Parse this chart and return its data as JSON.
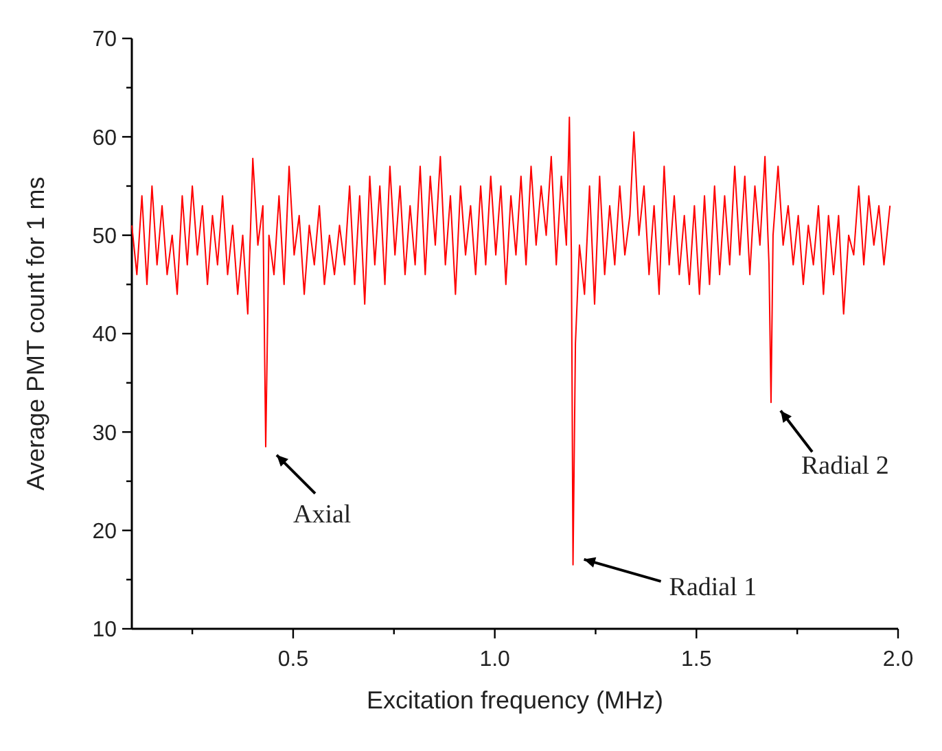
{
  "chart_data": {
    "type": "line",
    "xlabel": "Excitation frequency (MHz)",
    "ylabel": "Average PMT count for 1 ms",
    "xlim": [
      0.1,
      2.0
    ],
    "ylim": [
      10,
      70
    ],
    "xticks": [
      {
        "value": 0.25,
        "label": null
      },
      0.5,
      {
        "value": 0.75,
        "label": null
      },
      {
        "value": 1,
        "label": "1.0"
      },
      {
        "value": 1.25,
        "label": null
      },
      1.5,
      {
        "value": 1.75,
        "label": null
      },
      {
        "value": 2,
        "label": "2.0"
      }
    ],
    "yticks": [
      10,
      {
        "value": 15,
        "label": null
      },
      20,
      {
        "value": 25,
        "label": null
      },
      30,
      {
        "value": 35,
        "label": null
      },
      40,
      {
        "value": 45,
        "label": null
      },
      50,
      {
        "value": 55,
        "label": null
      },
      60,
      {
        "value": 65,
        "label": null
      },
      70
    ],
    "grid": false,
    "marker": "none",
    "line_style": "solid",
    "series": [
      {
        "color": "#ff0000",
        "x": [
          0.1,
          0.1125,
          0.125,
          0.1375,
          0.15,
          0.1625,
          0.175,
          0.1875,
          0.2,
          0.2125,
          0.225,
          0.2375,
          0.25,
          0.2625,
          0.275,
          0.2875,
          0.3,
          0.3125,
          0.325,
          0.3375,
          0.35,
          0.3625,
          0.375,
          0.3875,
          0.4,
          0.4125,
          0.425,
          0.432,
          0.44,
          0.4525,
          0.465,
          0.4775,
          0.49,
          0.5025,
          0.515,
          0.5275,
          0.54,
          0.5525,
          0.565,
          0.5775,
          0.59,
          0.6025,
          0.615,
          0.6275,
          0.64,
          0.6525,
          0.665,
          0.6775,
          0.69,
          0.7025,
          0.715,
          0.7275,
          0.74,
          0.7525,
          0.765,
          0.7775,
          0.79,
          0.8025,
          0.815,
          0.8275,
          0.84,
          0.8525,
          0.865,
          0.8775,
          0.89,
          0.9025,
          0.915,
          0.9275,
          0.94,
          0.9525,
          0.965,
          0.9775,
          0.99,
          1.0025,
          1.015,
          1.0275,
          1.04,
          1.0525,
          1.065,
          1.0775,
          1.09,
          1.1025,
          1.115,
          1.1275,
          1.14,
          1.1525,
          1.165,
          1.1775,
          1.185,
          1.19,
          1.194,
          1.2,
          1.21,
          1.2225,
          1.235,
          1.2475,
          1.26,
          1.2725,
          1.285,
          1.2975,
          1.31,
          1.3225,
          1.335,
          1.345,
          1.3575,
          1.37,
          1.3825,
          1.395,
          1.4075,
          1.42,
          1.4325,
          1.445,
          1.4575,
          1.47,
          1.4825,
          1.495,
          1.5075,
          1.52,
          1.5325,
          1.545,
          1.5575,
          1.57,
          1.5825,
          1.595,
          1.6075,
          1.62,
          1.6325,
          1.645,
          1.6575,
          1.67,
          1.68,
          1.685,
          1.69,
          1.7025,
          1.715,
          1.7275,
          1.74,
          1.7525,
          1.765,
          1.7775,
          1.79,
          1.8025,
          1.815,
          1.8275,
          1.84,
          1.8525,
          1.865,
          1.8775,
          1.89,
          1.9025,
          1.915,
          1.9275,
          1.94,
          1.9525,
          1.965,
          1.98
        ],
        "values": [
          51,
          46,
          54,
          45,
          55,
          47,
          53,
          46,
          50,
          44,
          54,
          47,
          55,
          48,
          53,
          45,
          52,
          47,
          54,
          46,
          51,
          44,
          50,
          42,
          57.8,
          49,
          53,
          28.5,
          50,
          46,
          54,
          45,
          57,
          48,
          52,
          44,
          51,
          47,
          53,
          45,
          50,
          46,
          51,
          47,
          55,
          45,
          54,
          43,
          56,
          47,
          55,
          45,
          57,
          48,
          55,
          46,
          53,
          47,
          57,
          46,
          56,
          49,
          58,
          47,
          54,
          44,
          55,
          48,
          53,
          46,
          55,
          47,
          56,
          48,
          55,
          45,
          54,
          48,
          56,
          47,
          57,
          49,
          55,
          50,
          58,
          47,
          56,
          49,
          62,
          48,
          16.5,
          39,
          49,
          44,
          55,
          43,
          56,
          46,
          53,
          47,
          55,
          48,
          52,
          60.5,
          50,
          55,
          46,
          53,
          44,
          57,
          47,
          54,
          46,
          52,
          45,
          53,
          44,
          54,
          45,
          55,
          46,
          54,
          47,
          57,
          48,
          56,
          46,
          55,
          49,
          58,
          47,
          33,
          50,
          57,
          49,
          53,
          47,
          52,
          45,
          51,
          47,
          53,
          44,
          52,
          46,
          52,
          42,
          50,
          48,
          55,
          47,
          54,
          49,
          53,
          47,
          53
        ]
      }
    ],
    "annotations": [
      {
        "text": "Axial",
        "x": 0.432,
        "y": 28.5
      },
      {
        "text": "Radial 1",
        "x": 1.194,
        "y": 16.5
      },
      {
        "text": "Radial 2",
        "x": 1.685,
        "y": 33
      }
    ]
  }
}
